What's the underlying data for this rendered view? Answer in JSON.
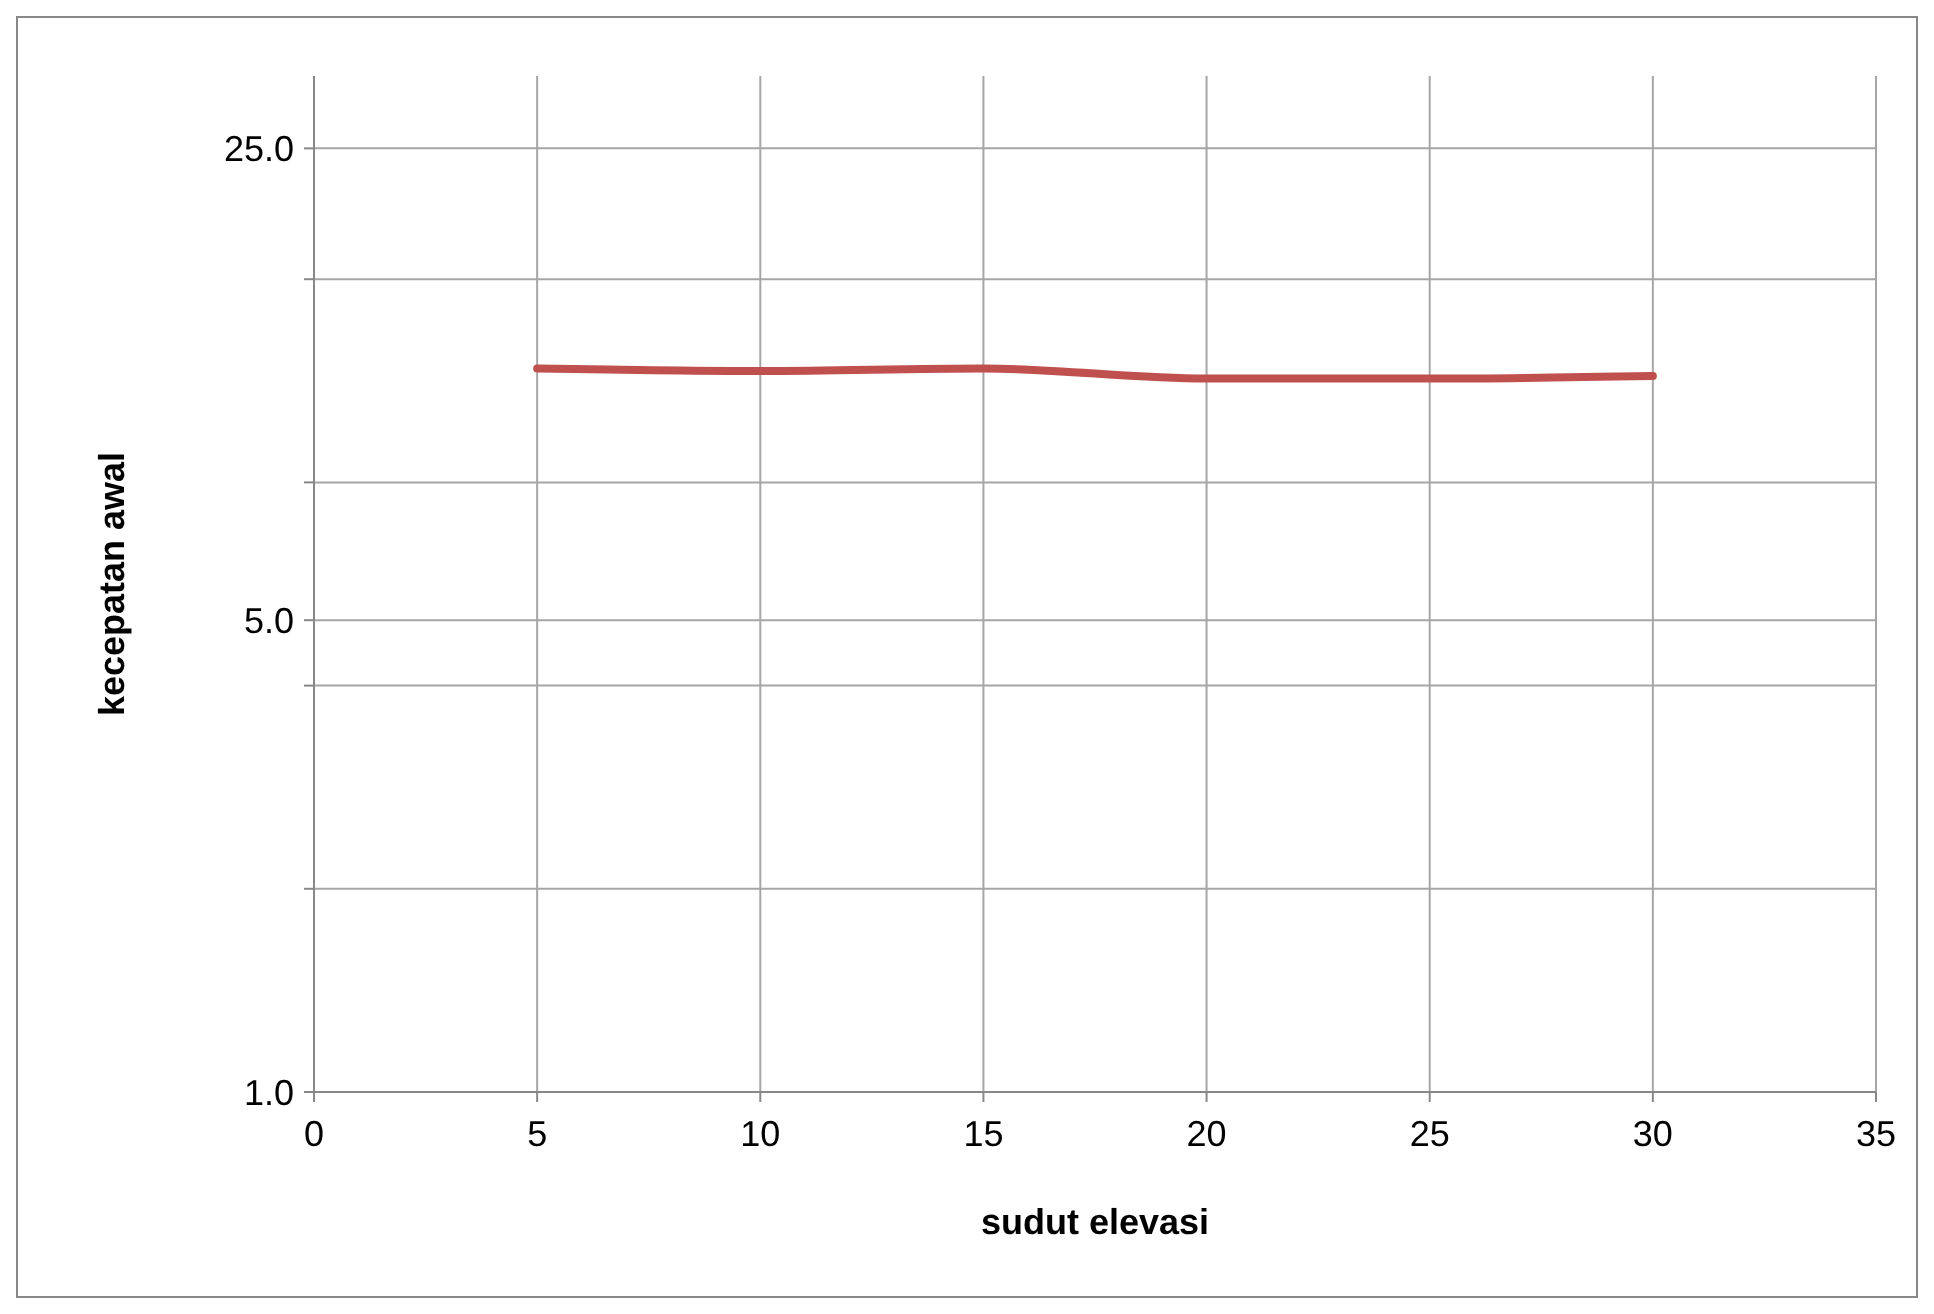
{
  "chart_data": {
    "type": "line",
    "xlabel": "sudut elevasi",
    "ylabel": "kecepatan awal",
    "x": [
      5,
      10,
      15,
      20,
      25,
      30
    ],
    "series": [
      {
        "color": "#c0504d",
        "values": [
          11.8,
          11.7,
          11.8,
          11.4,
          11.4,
          11.5
        ]
      }
    ],
    "xlim": [
      0,
      35
    ],
    "xticks": [
      0,
      5,
      10,
      15,
      20,
      25,
      30,
      35
    ],
    "ylim": [
      1,
      32
    ],
    "log": true,
    "yticks": [
      {
        "value": 1,
        "label": "1.0"
      },
      {
        "value": 2,
        "label": null
      },
      {
        "value": 4,
        "label": null
      },
      {
        "value": 5,
        "label": "5.0"
      },
      {
        "value": 8,
        "label": null
      },
      {
        "value": 16,
        "label": null
      },
      {
        "value": 25,
        "label": "25.0"
      }
    ],
    "grid": true,
    "marker": "none",
    "line_style": "solid"
  }
}
